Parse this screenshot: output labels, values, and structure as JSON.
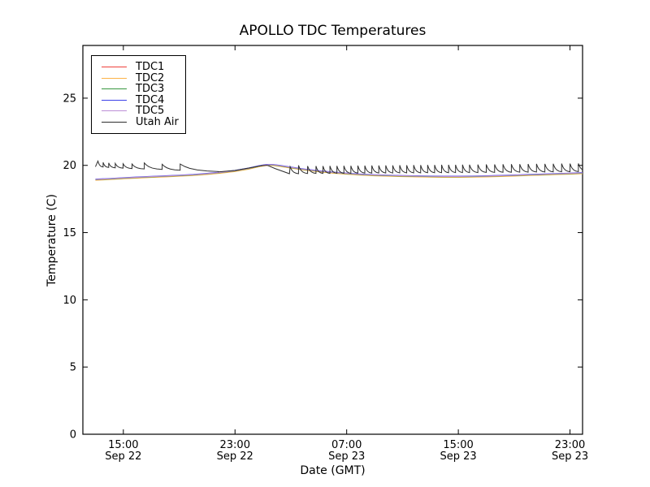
{
  "figure": {
    "background": "#ffffff"
  },
  "chart_data": {
    "type": "line",
    "title": "APOLLO TDC Temperatures",
    "xlabel": "Date (GMT)",
    "ylabel": "Temperature (C)",
    "x_unit": "hours since Sep 22 13:00 GMT",
    "xlim": [
      -0.9,
      34.9
    ],
    "ylim": [
      0,
      28.92
    ],
    "grid": false,
    "legend_position": "upper left",
    "yticks": [
      0,
      5,
      10,
      15,
      20,
      25
    ],
    "xticks": [
      {
        "t": 2,
        "time": "15:00",
        "date": "Sep 22"
      },
      {
        "t": 10,
        "time": "23:00",
        "date": "Sep 22"
      },
      {
        "t": 18,
        "time": "07:00",
        "date": "Sep 23"
      },
      {
        "t": 26,
        "time": "15:00",
        "date": "Sep 23"
      },
      {
        "t": 34,
        "time": "23:00",
        "date": "Sep 23"
      }
    ],
    "tdc_base_points": [
      [
        0,
        18.95
      ],
      [
        1,
        19.0
      ],
      [
        2,
        19.06
      ],
      [
        3,
        19.11
      ],
      [
        4,
        19.16
      ],
      [
        5,
        19.2
      ],
      [
        6,
        19.25
      ],
      [
        7,
        19.3
      ],
      [
        8,
        19.38
      ],
      [
        9,
        19.48
      ],
      [
        10,
        19.6
      ],
      [
        11,
        19.78
      ],
      [
        11.7,
        19.95
      ],
      [
        12.2,
        20.04
      ],
      [
        12.7,
        20.05
      ],
      [
        13.2,
        19.98
      ],
      [
        14,
        19.85
      ],
      [
        15,
        19.7
      ],
      [
        16,
        19.58
      ],
      [
        17,
        19.48
      ],
      [
        18,
        19.4
      ],
      [
        19,
        19.33
      ],
      [
        20,
        19.28
      ],
      [
        21,
        19.25
      ],
      [
        22,
        19.22
      ],
      [
        23,
        19.2
      ],
      [
        24,
        19.18
      ],
      [
        25,
        19.17
      ],
      [
        26,
        19.17
      ],
      [
        27,
        19.18
      ],
      [
        28,
        19.2
      ],
      [
        29,
        19.23
      ],
      [
        30,
        19.26
      ],
      [
        31,
        19.3
      ],
      [
        32,
        19.33
      ],
      [
        33,
        19.37
      ],
      [
        34,
        19.4
      ],
      [
        34.9,
        19.44
      ]
    ],
    "series": [
      {
        "name": "TDC1",
        "color": "#ee403b",
        "offset": -0.035
      },
      {
        "name": "TDC2",
        "color": "#fcb246",
        "offset": -0.055
      },
      {
        "name": "TDC3",
        "color": "#36973e",
        "offset": -0.015
      },
      {
        "name": "TDC4",
        "color": "#3c41e8",
        "offset": 0.025
      },
      {
        "name": "TDC5",
        "color": "#bd8fd6",
        "offset": 0.005
      }
    ],
    "utah_air": {
      "name": "Utah Air",
      "color": "#2e2e2e",
      "segments": [
        [
          "pt",
          0,
          19.9
        ],
        [
          "tooth",
          0.18,
          20.32,
          19.86
        ],
        [
          "tooth",
          0.55,
          20.22,
          19.83
        ],
        [
          "tooth",
          0.95,
          20.18,
          19.8
        ],
        [
          "tooth",
          1.42,
          20.15,
          19.78
        ],
        [
          "tooth",
          1.98,
          20.12,
          19.75
        ],
        [
          "tooth",
          2.62,
          20.1,
          19.72
        ],
        [
          "tooth",
          3.5,
          20.18,
          19.68
        ],
        [
          "tooth",
          4.78,
          20.08,
          19.62
        ],
        [
          "tooth",
          6.07,
          20.1,
          19.52
        ],
        [
          "pt",
          8.8,
          19.52
        ],
        [
          "pt",
          10,
          19.62
        ],
        [
          "pt",
          11,
          19.8
        ],
        [
          "pt",
          11.9,
          19.98
        ],
        [
          "pt",
          12.3,
          20.01
        ],
        [
          "pt",
          12.9,
          19.75
        ],
        [
          "pt",
          13.9,
          19.38
        ],
        [
          "tooth",
          13.95,
          19.9,
          19.36
        ],
        [
          "tooth",
          14.55,
          20.0,
          19.37
        ],
        [
          "tooth",
          15.2,
          19.95,
          19.38
        ],
        [
          "tooth",
          15.8,
          19.95,
          19.38
        ],
        [
          "tooth",
          16.3,
          19.95,
          19.38
        ],
        [
          "tooth",
          16.8,
          19.96,
          19.39
        ],
        [
          "tooth",
          17.3,
          19.96,
          19.39
        ],
        [
          "tooth",
          17.8,
          19.97,
          19.39
        ],
        [
          "tooth",
          18.3,
          19.97,
          19.4
        ],
        [
          "tooth",
          18.8,
          19.98,
          19.4
        ],
        [
          "tooth",
          19.3,
          19.98,
          19.4
        ],
        [
          "tooth",
          19.8,
          19.99,
          19.41
        ],
        [
          "tooth",
          20.3,
          19.99,
          19.41
        ],
        [
          "tooth",
          20.8,
          20.0,
          19.41
        ],
        [
          "tooth",
          21.3,
          20.0,
          19.42
        ],
        [
          "tooth",
          21.8,
          20.01,
          19.42
        ],
        [
          "tooth",
          22.3,
          20.01,
          19.42
        ],
        [
          "tooth",
          22.8,
          20.02,
          19.42
        ],
        [
          "tooth",
          23.3,
          20.02,
          19.43
        ],
        [
          "tooth",
          23.8,
          20.03,
          19.43
        ],
        [
          "tooth",
          24.3,
          20.03,
          19.43
        ],
        [
          "tooth",
          24.8,
          20.04,
          19.43
        ],
        [
          "tooth",
          25.3,
          20.04,
          19.44
        ],
        [
          "tooth",
          25.8,
          20.04,
          19.44
        ],
        [
          "tooth",
          26.3,
          20.05,
          19.44
        ],
        [
          "tooth",
          26.8,
          20.05,
          19.44
        ],
        [
          "tooth",
          27.4,
          20.06,
          19.45
        ],
        [
          "tooth",
          28.0,
          20.07,
          19.45
        ],
        [
          "tooth",
          28.6,
          20.07,
          19.46
        ],
        [
          "tooth",
          29.2,
          20.08,
          19.46
        ],
        [
          "tooth",
          29.8,
          20.09,
          19.47
        ],
        [
          "tooth",
          30.4,
          20.09,
          19.47
        ],
        [
          "tooth",
          31.0,
          20.1,
          19.48
        ],
        [
          "tooth",
          31.6,
          20.11,
          19.48
        ],
        [
          "tooth",
          32.2,
          20.11,
          19.49
        ],
        [
          "tooth",
          32.8,
          20.12,
          19.5
        ],
        [
          "tooth",
          33.4,
          20.13,
          19.5
        ],
        [
          "tooth",
          34.0,
          20.13,
          19.51
        ],
        [
          "tooth",
          34.6,
          20.14,
          19.52
        ]
      ]
    }
  }
}
